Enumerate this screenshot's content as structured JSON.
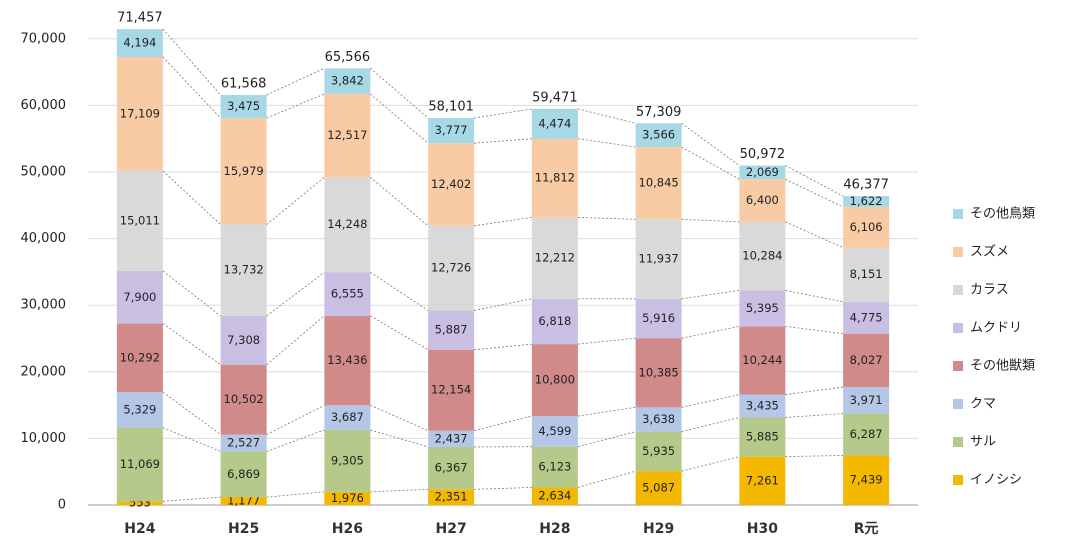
{
  "chart_data": {
    "type": "stacked_bar",
    "categories": [
      "H24",
      "H25",
      "H26",
      "H27",
      "H28",
      "H29",
      "H30",
      "R元"
    ],
    "series": [
      {
        "name": "イノシシ",
        "color": "#f5b800",
        "values": [
          553,
          1177,
          1976,
          2351,
          2634,
          5087,
          7261,
          7439
        ],
        "value_labels": [
          "553",
          "1,177",
          "1,976",
          "2,351",
          "2,634",
          "5,087",
          "7,261",
          "7,439"
        ]
      },
      {
        "name": "サル",
        "color": "#b5c98a",
        "values": [
          11069,
          6869,
          9305,
          6367,
          6123,
          5935,
          5885,
          6287
        ],
        "value_labels": [
          "11,069",
          "6,869",
          "9,305",
          "6,367",
          "6,123",
          "5,935",
          "5,885",
          "6,287"
        ]
      },
      {
        "name": "クマ",
        "color": "#b4c7e7",
        "values": [
          5329,
          2527,
          3687,
          2437,
          4599,
          3638,
          3435,
          3971
        ],
        "value_labels": [
          "5,329",
          "2,527",
          "3,687",
          "2,437",
          "4,599",
          "3,638",
          "3,435",
          "3,971"
        ]
      },
      {
        "name": "その他獣類",
        "color": "#d08a8a",
        "values": [
          10292,
          10502,
          13436,
          12154,
          10800,
          10385,
          10244,
          8027
        ],
        "value_labels": [
          "10,292",
          "10,502",
          "13,436",
          "12,154",
          "10,800",
          "10,385",
          "10,244",
          "8,027"
        ]
      },
      {
        "name": "ムクドリ",
        "color": "#c9bfe3",
        "values": [
          7900,
          7308,
          6555,
          5887,
          6818,
          5916,
          5395,
          4775
        ],
        "value_labels": [
          "7,900",
          "7,308",
          "6,555",
          "5,887",
          "6,818",
          "5,916",
          "5,395",
          "4,775"
        ]
      },
      {
        "name": "カラス",
        "color": "#d9d9d9",
        "values": [
          15011,
          13732,
          14248,
          12726,
          12212,
          11937,
          10284,
          8151
        ],
        "value_labels": [
          "15,011",
          "13,732",
          "14,248",
          "12,726",
          "12,212",
          "11,937",
          "10,284",
          "8,151"
        ]
      },
      {
        "name": "スズメ",
        "color": "#f9cba5",
        "values": [
          17109,
          15979,
          12517,
          12402,
          11812,
          10845,
          6400,
          6106
        ],
        "value_labels": [
          "17,109",
          "15,979",
          "12,517",
          "12,402",
          "11,812",
          "10,845",
          "6,400",
          "6,106"
        ]
      },
      {
        "name": "その他鳥類",
        "color": "#a7d8e6",
        "values": [
          4194,
          3475,
          3842,
          3777,
          4474,
          3566,
          2069,
          1622
        ],
        "value_labels": [
          "4,194",
          "3,475",
          "3,842",
          "3,777",
          "4,474",
          "3,566",
          "2,069",
          "1,622"
        ]
      }
    ],
    "totals": {
      "values": [
        71457,
        61568,
        65566,
        58101,
        59471,
        57309,
        50972,
        46377
      ],
      "value_labels": [
        "71,457",
        "61,568",
        "65,566",
        "58,101",
        "59,471",
        "57,309",
        "50,972",
        "46,377"
      ]
    },
    "ylim": [
      0,
      72000
    ],
    "yticks": [
      0,
      {
        "value": 10000,
        "label": "10,000"
      },
      {
        "value": 20000,
        "label": "20,000"
      },
      {
        "value": 30000,
        "label": "30,000"
      },
      {
        "value": 40000,
        "label": "40,000"
      },
      {
        "value": 50000,
        "label": "50,000"
      },
      {
        "value": 60000,
        "label": "60,000"
      },
      {
        "value": 70000,
        "label": "70,000"
      }
    ],
    "grid": true,
    "legend": "right"
  }
}
